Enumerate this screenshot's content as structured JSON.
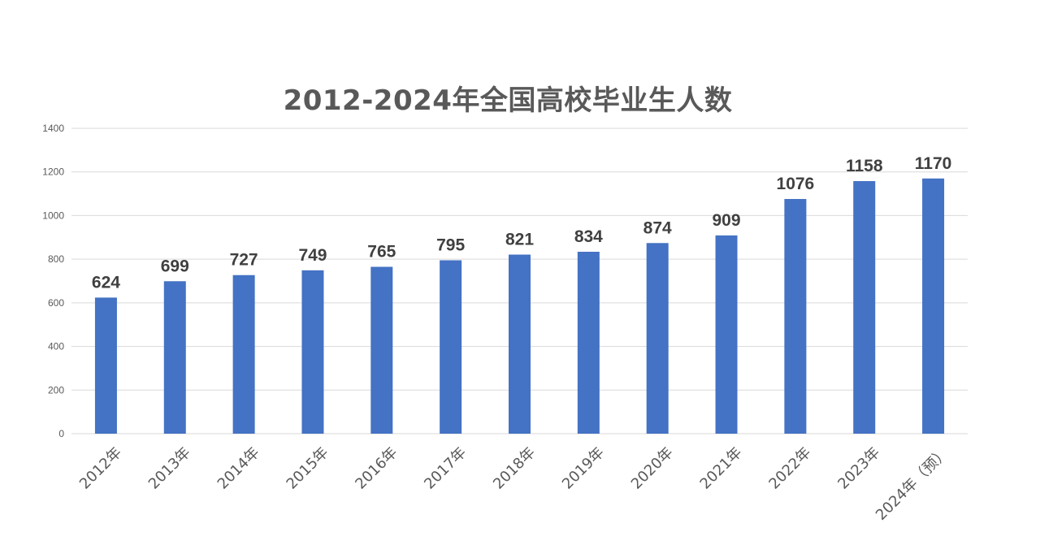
{
  "chart_data": {
    "type": "bar",
    "title": "2012-2024年全国高校毕业生人数",
    "categories": [
      "2012年",
      "2013年",
      "2014年",
      "2015年",
      "2016年",
      "2017年",
      "2018年",
      "2019年",
      "2020年",
      "2021年",
      "2022年",
      "2023年",
      "2024年（预）"
    ],
    "series": [
      {
        "values": [
          624,
          699,
          727,
          749,
          765,
          795,
          821,
          834,
          874,
          909,
          1076,
          1158,
          1170
        ],
        "color": "#4472C4"
      }
    ],
    "yticks": [
      0,
      200,
      400,
      600,
      800,
      1000,
      1200,
      1400
    ],
    "ylim": [
      0,
      1400
    ],
    "xlabel": "",
    "ylabel": "",
    "grid": true,
    "legend": "none",
    "gridline_color": "#D9D9D9",
    "data_labels": true
  }
}
